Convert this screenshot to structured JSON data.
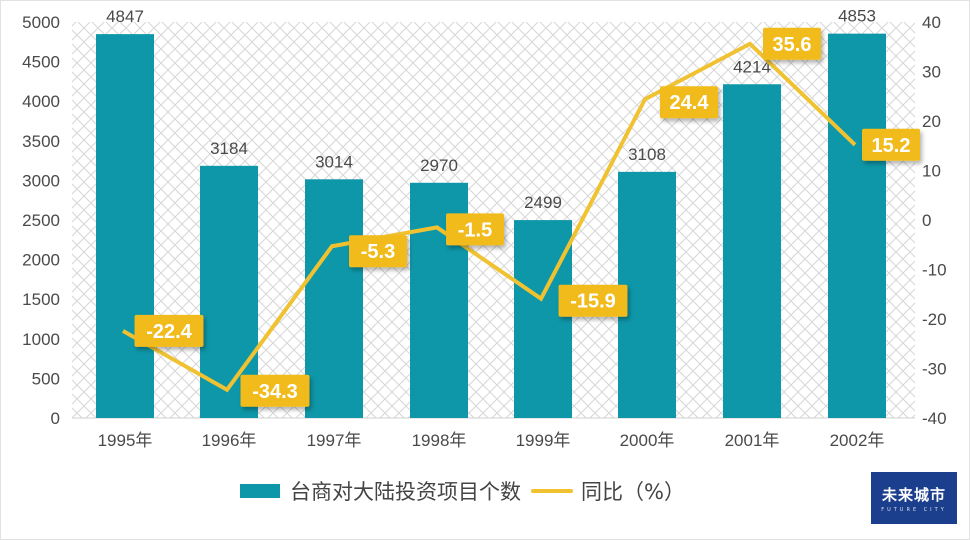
{
  "chart_data": {
    "type": "bar+line",
    "title": "",
    "categories": [
      "1995年",
      "1996年",
      "1997年",
      "1998年",
      "1999年",
      "2000年",
      "2001年",
      "2002年"
    ],
    "series": [
      {
        "name": "台商对大陆投资项目个数",
        "type": "bar",
        "axis": "left",
        "color": "#0e97a8",
        "values": [
          4847,
          3184,
          3014,
          2970,
          2499,
          3108,
          4214,
          4853
        ]
      },
      {
        "name": "同比（%）",
        "type": "line",
        "axis": "right",
        "color": "#f0c232",
        "values": [
          -22.4,
          -34.3,
          -5.3,
          -1.5,
          -15.9,
          24.4,
          35.6,
          15.2
        ]
      }
    ],
    "left_axis": {
      "ticks": [
        0,
        500,
        1000,
        1500,
        2000,
        2500,
        3000,
        3500,
        4000,
        4500,
        5000
      ],
      "ylim": [
        0,
        5000
      ]
    },
    "right_axis": {
      "ticks": [
        -40,
        -30,
        -20,
        -10,
        0,
        10,
        20,
        30,
        40
      ],
      "ylim": [
        -40,
        40
      ]
    },
    "bar_labels": [
      "4847",
      "3184",
      "3014",
      "2970",
      "2499",
      "3108",
      "4214",
      "4853"
    ],
    "line_labels": [
      "-22.4",
      "-34.3",
      "-5.3",
      "-1.5",
      "-15.9",
      "24.4",
      "35.6",
      "15.2"
    ],
    "grid": false,
    "background_pattern": "crosshatch",
    "legend_position": "bottom"
  },
  "legend": {
    "bar_label": "台商对大陆投资项目个数",
    "line_label": "同比（%）"
  },
  "watermark": {
    "cn": "未来城市",
    "en": "FUTURE CITY"
  }
}
